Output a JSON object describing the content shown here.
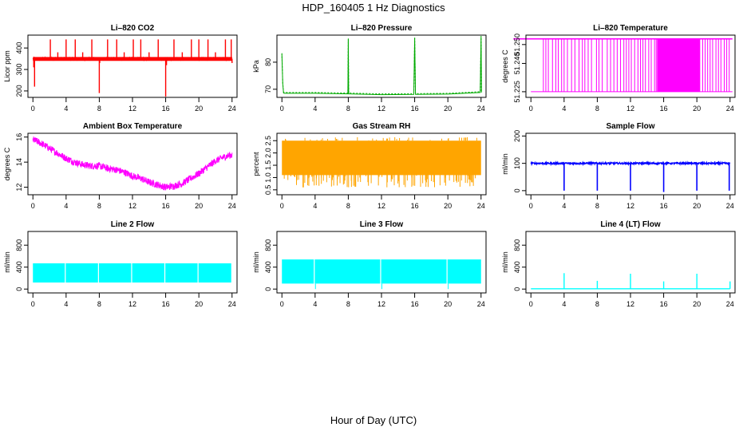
{
  "figure": {
    "title": "HDP_160405  1 Hz Diagnostics",
    "xlabel": "Hour of Day (UTC)"
  },
  "chart_data": [
    {
      "id": "co2",
      "type": "line",
      "title": "Li–820 CO2",
      "ylabel": "Licor ppm",
      "color": "#ff0000",
      "xlim": [
        -0.6,
        24.6
      ],
      "ylim": [
        170,
        460
      ],
      "xticks": [
        "0",
        "4",
        "8",
        "12",
        "16",
        "20",
        "24"
      ],
      "yticks": [
        "200",
        "300",
        "400"
      ],
      "ytick_values": [
        200,
        300,
        400
      ],
      "series": [
        {
          "baseline": 350,
          "noise": 6,
          "fill_band": [
            340,
            358
          ],
          "spikes": [
            [
              0.1,
              310
            ],
            [
              0.2,
              220
            ],
            [
              2.1,
              440
            ],
            [
              3.0,
              380
            ],
            [
              4.0,
              440
            ],
            [
              5.1,
              440
            ],
            [
              6.0,
              380
            ],
            [
              7.1,
              440
            ],
            [
              8.0,
              190
            ],
            [
              8.05,
              330
            ],
            [
              9.0,
              440
            ],
            [
              10.1,
              440
            ],
            [
              11.0,
              380
            ],
            [
              12.1,
              440
            ],
            [
              13.0,
              440
            ],
            [
              14.0,
              380
            ],
            [
              15.1,
              440
            ],
            [
              16.0,
              170
            ],
            [
              16.1,
              320
            ],
            [
              17.0,
              440
            ],
            [
              18.0,
              380
            ],
            [
              19.1,
              440
            ],
            [
              20.0,
              440
            ],
            [
              21.1,
              440
            ],
            [
              22.0,
              380
            ],
            [
              23.2,
              440
            ],
            [
              23.9,
              440
            ],
            [
              24.0,
              330
            ]
          ]
        }
      ]
    },
    {
      "id": "pressure",
      "type": "line",
      "title": "Li–820 Pressure",
      "ylabel": "kPa",
      "color": "#00aa00",
      "xlim": [
        -0.6,
        24.6
      ],
      "ylim": [
        67,
        90
      ],
      "xticks": [
        "0",
        "4",
        "8",
        "12",
        "16",
        "20",
        "24"
      ],
      "yticks": [
        "70",
        "80"
      ],
      "ytick_values": [
        70,
        80
      ],
      "series": [
        {
          "x": [
            0,
            0.1,
            0.2,
            0.3,
            4,
            7.95,
            8.0,
            8.05,
            12,
            15.9,
            16.0,
            16.1,
            20,
            23.9,
            24.0,
            24.05
          ],
          "y": [
            83,
            72,
            68.6,
            68.5,
            68.5,
            68.3,
            88.5,
            68.3,
            68.0,
            68.1,
            89.0,
            68.1,
            68.2,
            68.8,
            89.5,
            68.8
          ]
        }
      ]
    },
    {
      "id": "temperature",
      "type": "line",
      "title": "Li–820 Temperature",
      "ylabel": "degrees C",
      "color": "#ff00ff",
      "xlim": [
        -0.6,
        24.6
      ],
      "ylim": [
        51.222,
        51.255
      ],
      "xticks": [
        "0",
        "4",
        "8",
        "12",
        "16",
        "20",
        "24"
      ],
      "yticks": [
        "51.225",
        "51.240",
        "51.250"
      ],
      "ytick_values": [
        51.225,
        51.24,
        51.25
      ],
      "series": [
        {
          "high": 51.253,
          "low": 51.225,
          "dense_band": [
            15.2,
            20.4
          ],
          "drops": [
            1.5,
            1.8,
            2.1,
            2.6,
            3.0,
            3.3,
            3.7,
            4.0,
            4.4,
            4.9,
            5.3,
            5.8,
            6.2,
            6.5,
            6.9,
            7.3,
            7.9,
            8.2,
            8.6,
            9.2,
            9.6,
            10.0,
            10.4,
            10.8,
            11.2,
            11.5,
            11.8,
            12.1,
            12.5,
            12.9,
            13.2,
            13.5,
            13.8,
            14.2,
            14.5,
            14.9,
            15.1,
            20.7,
            21.0,
            21.3,
            21.6,
            21.9,
            22.3,
            22.6,
            22.9,
            23.3,
            23.6,
            23.9
          ]
        }
      ]
    },
    {
      "id": "ambient",
      "type": "line",
      "title": "Ambient Box Temperature",
      "ylabel": "degrees C",
      "color": "#ff00ff",
      "xlim": [
        -0.6,
        24.6
      ],
      "ylim": [
        11.4,
        16.3
      ],
      "xticks": [
        "0",
        "4",
        "8",
        "12",
        "16",
        "20",
        "24"
      ],
      "yticks": [
        "12",
        "14",
        "16"
      ],
      "ytick_values": [
        12,
        14,
        16
      ],
      "series": [
        {
          "x": [
            0,
            1,
            2,
            3,
            4,
            5,
            6,
            7,
            8,
            9,
            10,
            11,
            12,
            13,
            14,
            15,
            16,
            17,
            18,
            19,
            20,
            21,
            22,
            23,
            24
          ],
          "y": [
            15.8,
            15.5,
            15.1,
            14.7,
            14.3,
            14.0,
            13.8,
            13.7,
            13.7,
            13.5,
            13.4,
            13.2,
            12.9,
            12.7,
            12.4,
            12.2,
            12.0,
            12.1,
            12.3,
            12.7,
            13.1,
            13.6,
            14.1,
            14.4,
            14.6
          ],
          "noise": 0.28
        }
      ]
    },
    {
      "id": "rh",
      "type": "area",
      "title": "Gas Stream RH",
      "ylabel": "percent",
      "color": "#ffa500",
      "xlim": [
        -0.6,
        24.6
      ],
      "ylim": [
        0.3,
        2.8
      ],
      "xticks": [
        "0",
        "4",
        "8",
        "12",
        "16",
        "20",
        "24"
      ],
      "yticks": [
        "0.5",
        "1.0",
        "1.5",
        "2.0",
        "2.5"
      ],
      "ytick_values": [
        0.5,
        1.0,
        1.5,
        2.0,
        2.5
      ],
      "series": [
        {
          "band_low": 1.1,
          "band_high": 2.5,
          "dips_to": 0.6
        }
      ]
    },
    {
      "id": "sample",
      "type": "line",
      "title": "Sample Flow",
      "ylabel": "ml/min",
      "color": "#0000ff",
      "xlim": [
        -0.6,
        24.6
      ],
      "ylim": [
        -15,
        210
      ],
      "xticks": [
        "0",
        "4",
        "8",
        "12",
        "16",
        "20",
        "24"
      ],
      "yticks": [
        "0",
        "100",
        "200"
      ],
      "ytick_values": [
        0,
        100,
        200
      ],
      "series": [
        {
          "baseline": 100,
          "noise": 3,
          "drops": [
            [
              4.0,
              0
            ],
            [
              8.0,
              0
            ],
            [
              12.0,
              0
            ],
            [
              16.0,
              -5
            ],
            [
              20.0,
              0
            ],
            [
              23.9,
              0
            ]
          ]
        }
      ]
    },
    {
      "id": "line2",
      "type": "area",
      "title": "Line 2 Flow",
      "ylabel": "ml/min",
      "color": "#00ffff",
      "xlim": [
        -0.6,
        24.6
      ],
      "ylim": [
        -70,
        1050
      ],
      "xticks": [
        "0",
        "4",
        "8",
        "12",
        "16",
        "20",
        "24"
      ],
      "yticks": [
        "0",
        "400",
        "800"
      ],
      "ytick_values": [
        0,
        400,
        800
      ],
      "series": [
        {
          "band_low": 120,
          "band_high": 470,
          "gaps": [
            3.9,
            7.9,
            11.9,
            15.9,
            19.9
          ],
          "end": 23.9
        }
      ]
    },
    {
      "id": "line3",
      "type": "area",
      "title": "Line 3 Flow",
      "ylabel": "ml/min",
      "color": "#00ffff",
      "xlim": [
        -0.6,
        24.6
      ],
      "ylim": [
        -70,
        1050
      ],
      "xticks": [
        "0",
        "4",
        "8",
        "12",
        "16",
        "20",
        "24"
      ],
      "yticks": [
        "0",
        "400",
        "800"
      ],
      "ytick_values": [
        0,
        400,
        800
      ],
      "series": [
        {
          "band_low": 100,
          "band_high": 540,
          "gaps": [
            3.9,
            11.9,
            19.9
          ],
          "end": 24.0
        }
      ]
    },
    {
      "id": "line4",
      "type": "line",
      "title": "Line 4 (LT) Flow",
      "ylabel": "ml/min",
      "color": "#00ffff",
      "xlim": [
        -0.6,
        24.6
      ],
      "ylim": [
        -70,
        1050
      ],
      "xticks": [
        "0",
        "4",
        "8",
        "12",
        "16",
        "20",
        "24"
      ],
      "yticks": [
        "0",
        "400",
        "800"
      ],
      "ytick_values": [
        0,
        400,
        800
      ],
      "series": [
        {
          "baseline": 5,
          "spikes": [
            [
              4.0,
              290
            ],
            [
              8.0,
              150
            ],
            [
              12.0,
              280
            ],
            [
              16.0,
              140
            ],
            [
              20.0,
              280
            ],
            [
              24.0,
              140
            ]
          ]
        }
      ]
    }
  ]
}
